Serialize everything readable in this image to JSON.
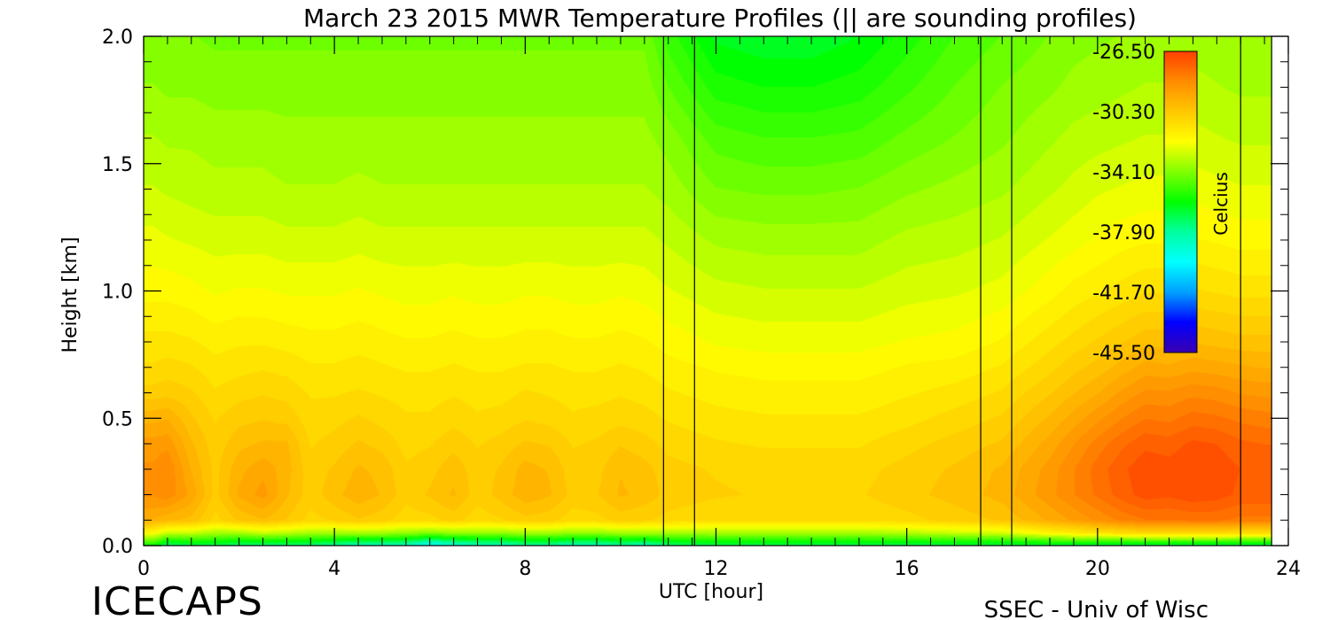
{
  "chart_data": {
    "type": "heatmap",
    "title": "March 23 2015 MWR Temperature Profiles (|| are sounding profiles)",
    "xlabel": "UTC [hour]",
    "ylabel": "Height [km]",
    "xlim": [
      0,
      24
    ],
    "ylim": [
      0,
      2.0
    ],
    "x_ticks": [
      "0",
      "4",
      "8",
      "12",
      "16",
      "20",
      "24"
    ],
    "y_ticks": [
      "0.0",
      "0.5",
      "1.0",
      "1.5",
      "2.0"
    ],
    "colorbar": {
      "label": "Celcius",
      "min": -45.5,
      "max": -26.5,
      "ticks": [
        "-26.50",
        "-30.30",
        "-34.10",
        "-37.90",
        "-41.70",
        "-45.50"
      ],
      "colors": [
        "#3a00b0",
        "#0000ff",
        "#00a0ff",
        "#00ffff",
        "#00ffa0",
        "#00ff00",
        "#80ff00",
        "#ffff00",
        "#ffc800",
        "#ff8c00",
        "#ff4000"
      ]
    },
    "sounding_profiles": [
      {
        "start": 10.9,
        "end": 11.55
      },
      {
        "start": 17.55,
        "end": 18.2
      },
      {
        "start": 23.0,
        "end": 23.65
      }
    ],
    "heights_km": [
      0.0,
      0.05,
      0.1,
      0.2,
      0.3,
      0.4,
      0.5,
      0.6,
      0.7,
      0.8,
      1.0,
      1.2,
      1.4,
      1.6,
      1.8,
      2.0
    ],
    "times_hr": [
      0.2,
      0.5,
      1,
      1.5,
      2,
      2.5,
      3,
      3.5,
      4,
      4.5,
      5,
      5.5,
      6,
      6.5,
      7,
      7.5,
      8,
      8.5,
      9,
      9.5,
      10,
      10.5,
      11,
      12,
      13,
      14,
      15,
      16,
      17,
      18,
      19,
      19.5,
      20,
      20.5,
      21,
      21.5,
      22,
      22.5,
      23,
      23.5
    ],
    "profiles_celsius": [
      [
        -36.0,
        -32.0,
        -29.5,
        -28.6,
        -28.6,
        -28.9,
        -29.6,
        -30.5,
        -31.0,
        -31.3,
        -32.0,
        -32.5,
        -33.0,
        -33.4,
        -33.8,
        -34.1
      ],
      [
        -37.5,
        -33.0,
        -29.8,
        -28.4,
        -28.3,
        -28.8,
        -29.5,
        -30.4,
        -30.9,
        -31.3,
        -32.0,
        -32.6,
        -33.1,
        -33.5,
        -33.9,
        -34.2
      ],
      [
        -37.0,
        -33.0,
        -30.0,
        -29.2,
        -29.5,
        -29.8,
        -30.2,
        -30.6,
        -31.0,
        -31.4,
        -32.1,
        -32.7,
        -33.2,
        -33.5,
        -33.9,
        -34.2
      ],
      [
        -37.0,
        -33.5,
        -30.8,
        -30.4,
        -30.4,
        -30.5,
        -30.7,
        -31.0,
        -31.3,
        -31.6,
        -32.3,
        -32.8,
        -33.3,
        -33.6,
        -34.0,
        -34.3
      ],
      [
        -37.5,
        -33.5,
        -30.2,
        -29.4,
        -29.6,
        -30.0,
        -30.4,
        -30.8,
        -31.2,
        -31.5,
        -32.2,
        -32.8,
        -33.3,
        -33.6,
        -34.0,
        -34.3
      ],
      [
        -37.5,
        -33.0,
        -29.9,
        -28.9,
        -29.2,
        -29.8,
        -30.3,
        -30.7,
        -31.1,
        -31.5,
        -32.2,
        -32.8,
        -33.3,
        -33.6,
        -34.0,
        -34.3
      ],
      [
        -37.5,
        -33.2,
        -30.3,
        -29.8,
        -29.7,
        -29.8,
        -30.4,
        -30.8,
        -31.2,
        -31.6,
        -32.3,
        -32.9,
        -33.4,
        -33.7,
        -34.0,
        -34.3
      ],
      [
        -37.5,
        -33.5,
        -30.8,
        -30.5,
        -30.5,
        -30.7,
        -30.9,
        -31.1,
        -31.4,
        -31.7,
        -32.3,
        -32.9,
        -33.4,
        -33.7,
        -34.0,
        -34.3
      ],
      [
        -38.0,
        -33.5,
        -30.6,
        -30.0,
        -30.2,
        -30.5,
        -30.8,
        -31.1,
        -31.4,
        -31.7,
        -32.3,
        -32.9,
        -33.4,
        -33.7,
        -34.0,
        -34.3
      ],
      [
        -38.5,
        -33.5,
        -30.3,
        -29.6,
        -29.8,
        -30.2,
        -30.6,
        -31.0,
        -31.3,
        -31.6,
        -32.2,
        -32.8,
        -33.3,
        -33.7,
        -34.0,
        -34.3
      ],
      [
        -38.5,
        -33.5,
        -30.5,
        -29.9,
        -30.0,
        -30.4,
        -30.8,
        -31.1,
        -31.4,
        -31.7,
        -32.3,
        -32.9,
        -33.4,
        -33.7,
        -34.0,
        -34.3
      ],
      [
        -38.5,
        -33.8,
        -30.9,
        -30.5,
        -30.6,
        -30.8,
        -31.0,
        -31.2,
        -31.5,
        -31.8,
        -32.4,
        -32.9,
        -33.4,
        -33.7,
        -34.0,
        -34.3
      ],
      [
        -40.0,
        -34.0,
        -30.8,
        -30.2,
        -30.4,
        -30.7,
        -31.0,
        -31.2,
        -31.5,
        -31.8,
        -32.4,
        -32.9,
        -33.4,
        -33.7,
        -34.0,
        -34.3
      ],
      [
        -39.0,
        -33.8,
        -30.5,
        -29.8,
        -30.0,
        -30.4,
        -30.8,
        -31.1,
        -31.4,
        -31.7,
        -32.3,
        -32.9,
        -33.4,
        -33.7,
        -34.0,
        -34.3
      ],
      [
        -38.5,
        -33.8,
        -30.9,
        -30.5,
        -30.5,
        -30.7,
        -31.0,
        -31.2,
        -31.5,
        -31.8,
        -32.4,
        -32.9,
        -33.4,
        -33.7,
        -34.0,
        -34.3
      ],
      [
        -38.5,
        -33.8,
        -30.7,
        -30.1,
        -30.2,
        -30.5,
        -30.9,
        -31.2,
        -31.5,
        -31.8,
        -32.4,
        -32.9,
        -33.4,
        -33.7,
        -34.0,
        -34.3
      ],
      [
        -38.0,
        -33.5,
        -30.4,
        -29.6,
        -29.7,
        -30.2,
        -30.7,
        -31.0,
        -31.4,
        -31.7,
        -32.3,
        -32.9,
        -33.4,
        -33.7,
        -34.0,
        -34.3
      ],
      [
        -38.0,
        -33.5,
        -30.5,
        -29.8,
        -29.9,
        -30.3,
        -30.8,
        -31.1,
        -31.4,
        -31.7,
        -32.3,
        -32.9,
        -33.4,
        -33.7,
        -34.0,
        -34.3
      ],
      [
        -38.5,
        -33.8,
        -30.9,
        -30.4,
        -30.5,
        -30.7,
        -31.0,
        -31.2,
        -31.5,
        -31.8,
        -32.4,
        -32.9,
        -33.4,
        -33.7,
        -34.0,
        -34.3
      ],
      [
        -38.5,
        -33.8,
        -30.8,
        -30.3,
        -30.4,
        -30.6,
        -30.9,
        -31.2,
        -31.5,
        -31.8,
        -32.4,
        -32.9,
        -33.4,
        -33.7,
        -34.0,
        -34.3
      ],
      [
        -38.0,
        -33.5,
        -30.5,
        -29.8,
        -29.9,
        -30.3,
        -30.8,
        -31.1,
        -31.4,
        -31.7,
        -32.3,
        -32.9,
        -33.4,
        -33.7,
        -34.0,
        -34.3
      ],
      [
        -38.5,
        -33.5,
        -30.6,
        -30.0,
        -30.1,
        -30.5,
        -30.9,
        -31.2,
        -31.5,
        -31.8,
        -32.4,
        -32.9,
        -33.4,
        -33.7,
        -34.0,
        -34.3
      ],
      [
        -37.5,
        -33.5,
        -30.8,
        -30.4,
        -30.5,
        -30.8,
        -31.1,
        -31.4,
        -31.7,
        -32.0,
        -32.6,
        -33.1,
        -33.6,
        -34.0,
        -34.6,
        -35.2
      ],
      [
        -37.0,
        -33.5,
        -31.0,
        -30.6,
        -30.7,
        -31.0,
        -31.3,
        -31.6,
        -31.9,
        -32.3,
        -32.9,
        -33.5,
        -34.2,
        -34.8,
        -35.6,
        -36.3
      ],
      [
        -37.0,
        -33.5,
        -31.0,
        -30.7,
        -30.8,
        -31.1,
        -31.4,
        -31.7,
        -32.0,
        -32.4,
        -33.0,
        -33.6,
        -34.3,
        -35.0,
        -35.8,
        -36.5
      ],
      [
        -37.0,
        -33.5,
        -31.0,
        -30.7,
        -30.8,
        -31.1,
        -31.4,
        -31.7,
        -32.0,
        -32.4,
        -33.0,
        -33.6,
        -34.3,
        -35.0,
        -35.8,
        -36.5
      ],
      [
        -37.0,
        -33.5,
        -31.0,
        -30.7,
        -30.8,
        -31.1,
        -31.4,
        -31.7,
        -32.0,
        -32.4,
        -33.0,
        -33.6,
        -34.2,
        -34.9,
        -35.6,
        -36.2
      ],
      [
        -37.0,
        -33.3,
        -30.8,
        -30.4,
        -30.5,
        -30.8,
        -31.2,
        -31.5,
        -31.8,
        -32.2,
        -32.8,
        -33.3,
        -33.9,
        -34.5,
        -35.1,
        -35.6
      ],
      [
        -37.0,
        -33.0,
        -30.5,
        -30.1,
        -30.2,
        -30.5,
        -30.9,
        -31.3,
        -31.7,
        -32.1,
        -32.7,
        -33.2,
        -33.7,
        -34.2,
        -34.6,
        -35.0
      ],
      [
        -37.0,
        -32.8,
        -30.2,
        -29.7,
        -29.8,
        -30.2,
        -30.6,
        -31.0,
        -31.4,
        -31.8,
        -32.5,
        -33.0,
        -33.5,
        -33.9,
        -34.2,
        -34.6
      ],
      [
        -37.0,
        -31.8,
        -29.4,
        -28.8,
        -28.9,
        -29.3,
        -29.8,
        -30.3,
        -30.8,
        -31.2,
        -32.0,
        -32.6,
        -33.1,
        -33.5,
        -33.9,
        -34.2
      ],
      [
        -37.0,
        -31.5,
        -29.0,
        -28.3,
        -28.3,
        -28.7,
        -29.3,
        -29.9,
        -30.4,
        -30.9,
        -31.7,
        -32.4,
        -32.9,
        -33.3,
        -33.7,
        -34.0
      ],
      [
        -37.0,
        -31.2,
        -28.6,
        -27.8,
        -27.7,
        -28.1,
        -28.8,
        -29.5,
        -30.1,
        -30.6,
        -31.5,
        -32.2,
        -32.7,
        -33.2,
        -33.6,
        -33.9
      ],
      [
        -37.0,
        -31.0,
        -28.2,
        -27.3,
        -27.2,
        -27.6,
        -28.3,
        -29.0,
        -29.7,
        -30.3,
        -31.3,
        -32.0,
        -32.6,
        -33.1,
        -33.5,
        -33.8
      ],
      [
        -37.0,
        -30.8,
        -27.9,
        -26.9,
        -26.8,
        -27.2,
        -27.9,
        -28.6,
        -29.3,
        -30.0,
        -31.1,
        -31.9,
        -32.5,
        -33.0,
        -33.4,
        -33.7
      ],
      [
        -37.0,
        -30.8,
        -27.9,
        -27.0,
        -26.9,
        -27.3,
        -28.0,
        -28.6,
        -29.4,
        -30.0,
        -31.1,
        -31.9,
        -32.5,
        -33.0,
        -33.4,
        -33.7
      ],
      [
        -37.0,
        -30.8,
        -27.8,
        -26.8,
        -26.7,
        -27.0,
        -27.7,
        -28.4,
        -29.2,
        -29.9,
        -31.0,
        -31.8,
        -32.4,
        -32.9,
        -33.3,
        -33.6
      ],
      [
        -37.0,
        -30.8,
        -27.8,
        -26.9,
        -26.8,
        -27.1,
        -27.8,
        -28.5,
        -29.3,
        -30.0,
        -31.1,
        -31.9,
        -32.5,
        -33.0,
        -33.4,
        -33.7
      ],
      [
        -37.0,
        -31.0,
        -28.0,
        -27.2,
        -27.1,
        -27.4,
        -28.0,
        -28.7,
        -29.4,
        -30.1,
        -31.2,
        -32.0,
        -32.6,
        -33.1,
        -33.5,
        -33.8
      ],
      [
        -37.0,
        -31.0,
        -28.0,
        -27.2,
        -27.2,
        -27.5,
        -28.1,
        -28.8,
        -29.5,
        -30.1,
        -31.2,
        -32.0,
        -32.6,
        -33.1,
        -33.5,
        -33.8
      ]
    ]
  },
  "footer": {
    "left_label": "ICECAPS",
    "right_label": "SSEC - Univ of Wisc"
  }
}
